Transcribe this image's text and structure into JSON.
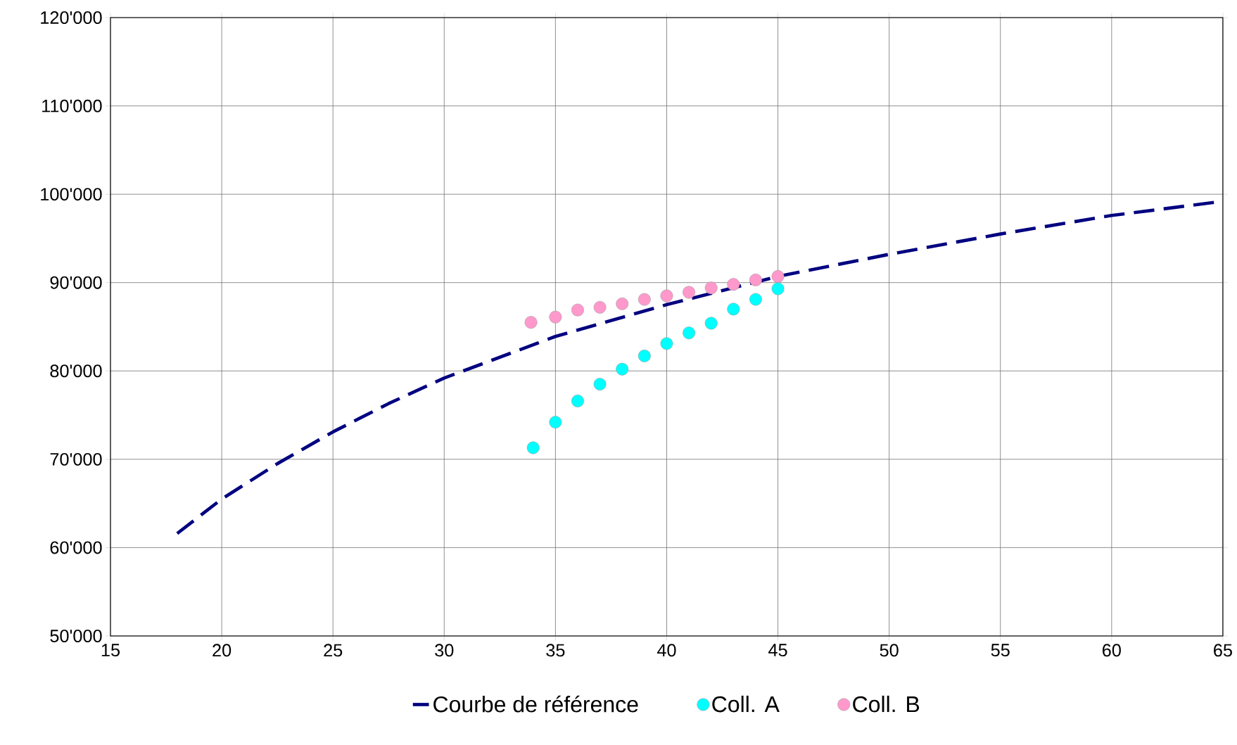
{
  "chart_data": {
    "type": "scatter",
    "series": [
      {
        "name": "Courbe de référence",
        "type": "line",
        "color": "#000080",
        "line_style": "dashed",
        "marker": "none",
        "x": [
          18,
          20,
          22.5,
          25,
          27.5,
          30,
          35,
          40,
          45,
          50,
          55,
          60,
          65
        ],
        "values": [
          61600,
          65500,
          69500,
          73100,
          76300,
          79200,
          83900,
          87500,
          90700,
          93200,
          95500,
          97600,
          99200
        ]
      },
      {
        "name": "Coll. A",
        "color": "#00ffff",
        "marker": "circle",
        "x": [
          34,
          35,
          36,
          37,
          38,
          39,
          40,
          41,
          42,
          43,
          44,
          45
        ],
        "values": [
          71300,
          74200,
          76600,
          78500,
          80200,
          81700,
          83100,
          84300,
          85400,
          87000,
          88100,
          89300
        ]
      },
      {
        "name": "Coll. B",
        "color": "#ff99cc",
        "marker": "circle",
        "x": [
          33.9,
          35,
          36,
          37,
          38,
          39,
          40,
          41,
          42,
          43,
          44,
          45
        ],
        "values": [
          85500,
          86100,
          86900,
          87200,
          87600,
          88100,
          88500,
          88900,
          89400,
          89800,
          90300,
          90700
        ]
      }
    ],
    "xlim": [
      15,
      65
    ],
    "xticks": [
      15,
      20,
      25,
      30,
      35,
      40,
      45,
      50,
      55,
      60,
      65
    ],
    "ylim": [
      50000,
      120000
    ],
    "yticks": [
      {
        "value": 50000,
        "label": "50'000"
      },
      {
        "value": 60000,
        "label": "60'000"
      },
      {
        "value": 70000,
        "label": "70'000"
      },
      {
        "value": 80000,
        "label": "80'000"
      },
      {
        "value": 90000,
        "label": "90'000"
      },
      {
        "value": 100000,
        "label": "100'000"
      },
      {
        "value": 110000,
        "label": "110'000"
      },
      {
        "value": 120000,
        "label": "120'000"
      }
    ],
    "grid": true,
    "legend": "bottom"
  }
}
